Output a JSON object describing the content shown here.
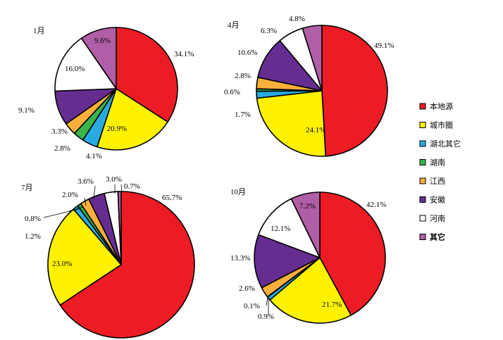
{
  "chart_data": {
    "type": "pie",
    "legend": {
      "position": "right",
      "entries": [
        {
          "name": "本地源",
          "color": "#ED1C24"
        },
        {
          "name": "城市圈",
          "color": "#FFF200"
        },
        {
          "name": "湖北其它",
          "color": "#29ABE2"
        },
        {
          "name": "湖南",
          "color": "#39B54A"
        },
        {
          "name": "江西",
          "color": "#FBB03B"
        },
        {
          "name": "安徽",
          "color": "#662D91"
        },
        {
          "name": "河南",
          "color": "#FFFFFF"
        },
        {
          "name": "其它",
          "color": "#B05EA5"
        }
      ]
    },
    "charts": [
      {
        "title": "1月",
        "slices": [
          {
            "name": "本地源",
            "value": 34.1,
            "label": "34.1%"
          },
          {
            "name": "城市圈",
            "value": 20.9,
            "label": "20.9%"
          },
          {
            "name": "湖北其它",
            "value": 4.1,
            "label": "4.1%"
          },
          {
            "name": "湖南",
            "value": 2.8,
            "label": "2.8%"
          },
          {
            "name": "江西",
            "value": 3.3,
            "label": "3.3%"
          },
          {
            "name": "安徽",
            "value": 9.1,
            "label": "9.1%"
          },
          {
            "name": "河南",
            "value": 16.0,
            "label": "16.0%"
          },
          {
            "name": "其它",
            "value": 9.6,
            "label": "9.6%"
          }
        ]
      },
      {
        "title": "4月",
        "slices": [
          {
            "name": "本地源",
            "value": 49.1,
            "label": "49.1%"
          },
          {
            "name": "城市圈",
            "value": 24.1,
            "label": "24.1%"
          },
          {
            "name": "湖北其它",
            "value": 1.7,
            "label": "1.7%"
          },
          {
            "name": "湖南",
            "value": 0.6,
            "label": "0.6%"
          },
          {
            "name": "江西",
            "value": 2.8,
            "label": "2.8%"
          },
          {
            "name": "安徽",
            "value": 10.6,
            "label": "10.6%"
          },
          {
            "name": "河南",
            "value": 6.3,
            "label": "6.3%"
          },
          {
            "name": "其它",
            "value": 4.8,
            "label": "4.8%"
          }
        ]
      },
      {
        "title": "7月",
        "slices": [
          {
            "name": "本地源",
            "value": 65.7,
            "label": "65.7%"
          },
          {
            "name": "城市圈",
            "value": 23.0,
            "label": "23.0%"
          },
          {
            "name": "湖北其它",
            "value": 1.2,
            "label": "1.2%"
          },
          {
            "name": "湖南",
            "value": 0.8,
            "label": "0.8%"
          },
          {
            "name": "江西",
            "value": 2.0,
            "label": "2.0%"
          },
          {
            "name": "安徽",
            "value": 3.6,
            "label": "3.6%"
          },
          {
            "name": "河南",
            "value": 3.0,
            "label": "3.0%"
          },
          {
            "name": "其它",
            "value": 0.7,
            "label": "0.7%"
          }
        ]
      },
      {
        "title": "10月",
        "slices": [
          {
            "name": "本地源",
            "value": 42.1,
            "label": "42.1%"
          },
          {
            "name": "城市圈",
            "value": 21.7,
            "label": "21.7%"
          },
          {
            "name": "湖北其它",
            "value": 0.9,
            "label": "0.9%"
          },
          {
            "name": "湖南",
            "value": 0.1,
            "label": "0.1%"
          },
          {
            "name": "江西",
            "value": 2.6,
            "label": "2.6%"
          },
          {
            "name": "安徽",
            "value": 13.3,
            "label": "13.3%"
          },
          {
            "name": "河南",
            "value": 12.1,
            "label": "12.1%"
          },
          {
            "name": "其它",
            "value": 7.2,
            "label": "7.2%"
          }
        ]
      }
    ]
  }
}
